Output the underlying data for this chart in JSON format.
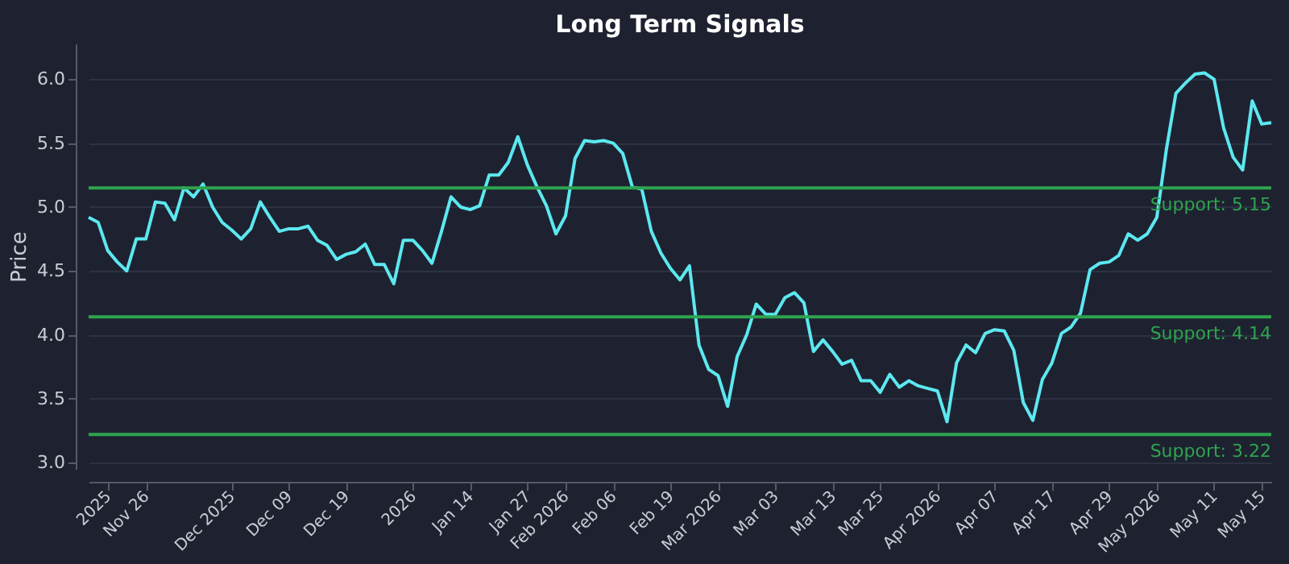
{
  "chart_data": {
    "type": "line",
    "title": "Long Term Signals",
    "ylabel": "Price",
    "categories": [
      null,
      null,
      "2025",
      null,
      null,
      null,
      "Nov 26",
      null,
      null,
      null,
      null,
      null,
      null,
      null,
      null,
      "Dec 2025",
      null,
      null,
      null,
      null,
      null,
      "Dec 09",
      null,
      null,
      null,
      null,
      null,
      "Dec 19",
      null,
      null,
      null,
      null,
      null,
      null,
      "2026",
      null,
      null,
      null,
      null,
      null,
      "Jan 14",
      null,
      null,
      null,
      null,
      null,
      "Jan 27",
      null,
      null,
      null,
      "Feb 2026",
      null,
      null,
      null,
      null,
      "Feb 06",
      null,
      null,
      null,
      null,
      null,
      "Feb 19",
      null,
      null,
      null,
      null,
      "Mar 2026",
      null,
      null,
      null,
      null,
      null,
      "Mar 03",
      null,
      null,
      null,
      null,
      null,
      "Mar 13",
      null,
      null,
      null,
      null,
      "Mar 25",
      null,
      null,
      null,
      null,
      null,
      "Apr 2026",
      null,
      null,
      null,
      null,
      null,
      "Apr 07",
      null,
      null,
      null,
      null,
      null,
      "Apr 17",
      null,
      null,
      null,
      null,
      null,
      "Apr 29",
      null,
      null,
      null,
      null,
      "May 2026",
      null,
      null,
      null,
      null,
      null,
      "May 11",
      null,
      null,
      null,
      null,
      "May 15",
      null
    ],
    "series": [
      {
        "color": "#5ce8f0",
        "values": [
          4.92,
          4.88,
          4.66,
          4.57,
          4.5,
          4.75,
          4.75,
          5.04,
          5.03,
          4.9,
          5.15,
          5.08,
          5.18,
          5.0,
          4.88,
          4.82,
          4.75,
          4.83,
          5.04,
          4.92,
          4.81,
          4.83,
          4.83,
          4.85,
          4.74,
          4.7,
          4.59,
          4.63,
          4.65,
          4.71,
          4.55,
          4.55,
          4.4,
          4.74,
          4.74,
          4.66,
          4.56,
          4.81,
          5.08,
          5.0,
          4.98,
          5.01,
          5.25,
          5.25,
          5.35,
          5.55,
          5.33,
          5.16,
          5.01,
          4.79,
          4.93,
          5.38,
          5.52,
          5.51,
          5.52,
          5.5,
          5.42,
          5.16,
          5.14,
          4.81,
          4.64,
          4.52,
          4.43,
          4.54,
          3.92,
          3.73,
          3.68,
          3.44,
          3.83,
          4.0,
          4.24,
          4.16,
          4.16,
          4.29,
          4.33,
          4.25,
          3.87,
          3.96,
          3.87,
          3.77,
          3.8,
          3.64,
          3.64,
          3.55,
          3.69,
          3.59,
          3.64,
          3.6,
          3.58,
          3.56,
          3.32,
          3.78,
          3.92,
          3.86,
          4.01,
          4.04,
          4.03,
          3.88,
          3.47,
          3.33,
          3.65,
          3.78,
          4.01,
          4.06,
          4.17,
          4.51,
          4.56,
          4.57,
          4.62,
          4.79,
          4.74,
          4.79,
          4.92,
          5.45,
          5.89,
          5.97,
          6.04,
          6.05,
          6.0,
          5.62,
          5.39,
          5.29,
          5.83,
          5.65,
          5.66
        ]
      }
    ],
    "ylim": [
      2.95,
      6.28
    ],
    "yticks": [
      {
        "value": 3,
        "label": "3.0"
      },
      3.5,
      {
        "value": 4,
        "label": "4.0"
      },
      4.5,
      {
        "value": 5,
        "label": "5.0"
      },
      5.5,
      {
        "value": 6,
        "label": "6.0"
      }
    ],
    "grid": "y",
    "marker": "none",
    "line_style": "solid",
    "ref_lines": [
      {
        "axis": "y",
        "value": 5.15,
        "label": "Support: 5.15",
        "color": "#2ea44f"
      },
      {
        "axis": "y",
        "value": 4.14,
        "label": "Support: 4.14",
        "color": "#2ea44f"
      },
      {
        "axis": "y",
        "value": 3.22,
        "label": "Support: 3.22",
        "color": "#2ea44f"
      }
    ]
  }
}
